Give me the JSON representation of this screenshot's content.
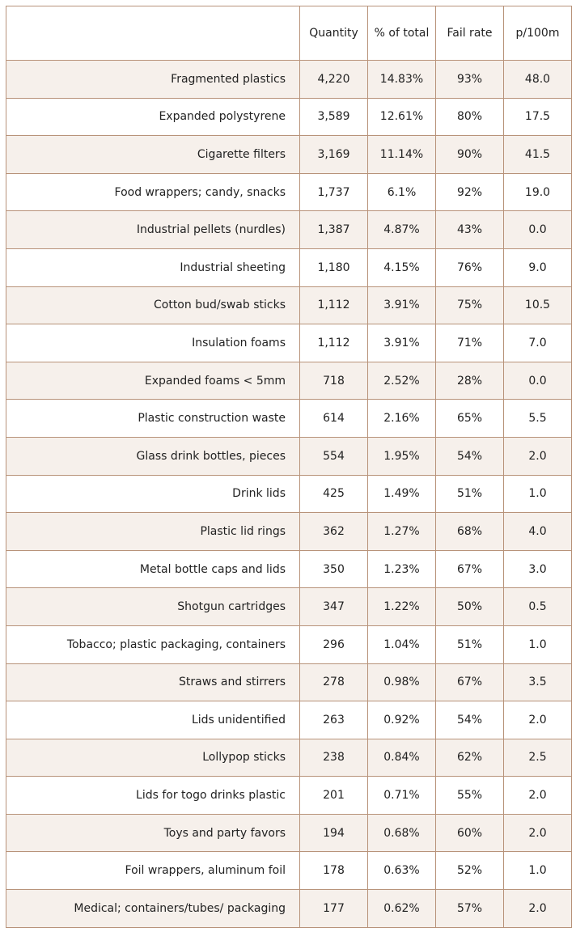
{
  "chart_data": {
    "type": "table",
    "columns": [
      "",
      "Quantity",
      "% of total",
      "Fail rate",
      "p/100m"
    ],
    "rows": [
      [
        "Fragmented plastics",
        "4,220",
        "14.83%",
        "93%",
        "48.0"
      ],
      [
        "Expanded polystyrene",
        "3,589",
        "12.61%",
        "80%",
        "17.5"
      ],
      [
        "Cigarette filters",
        "3,169",
        "11.14%",
        "90%",
        "41.5"
      ],
      [
        "Food wrappers; candy, snacks",
        "1,737",
        "6.1%",
        "92%",
        "19.0"
      ],
      [
        "Industrial pellets (nurdles)",
        "1,387",
        "4.87%",
        "43%",
        "0.0"
      ],
      [
        "Industrial sheeting",
        "1,180",
        "4.15%",
        "76%",
        "9.0"
      ],
      [
        "Cotton bud/swab sticks",
        "1,112",
        "3.91%",
        "75%",
        "10.5"
      ],
      [
        "Insulation foams",
        "1,112",
        "3.91%",
        "71%",
        "7.0"
      ],
      [
        "Expanded foams < 5mm",
        "718",
        "2.52%",
        "28%",
        "0.0"
      ],
      [
        "Plastic construction waste",
        "614",
        "2.16%",
        "65%",
        "5.5"
      ],
      [
        "Glass drink bottles, pieces",
        "554",
        "1.95%",
        "54%",
        "2.0"
      ],
      [
        "Drink lids",
        "425",
        "1.49%",
        "51%",
        "1.0"
      ],
      [
        "Plastic lid rings",
        "362",
        "1.27%",
        "68%",
        "4.0"
      ],
      [
        "Metal bottle caps and lids",
        "350",
        "1.23%",
        "67%",
        "3.0"
      ],
      [
        "Shotgun cartridges",
        "347",
        "1.22%",
        "50%",
        "0.5"
      ],
      [
        "Tobacco; plastic packaging, containers",
        "296",
        "1.04%",
        "51%",
        "1.0"
      ],
      [
        "Straws and stirrers",
        "278",
        "0.98%",
        "67%",
        "3.5"
      ],
      [
        "Lids unidentified",
        "263",
        "0.92%",
        "54%",
        "2.0"
      ],
      [
        "Lollypop sticks",
        "238",
        "0.84%",
        "62%",
        "2.5"
      ],
      [
        "Lids for togo drinks plastic",
        "201",
        "0.71%",
        "55%",
        "2.0"
      ],
      [
        "Toys and party favors",
        "194",
        "0.68%",
        "60%",
        "2.0"
      ],
      [
        "Foil wrappers, aluminum foil",
        "178",
        "0.63%",
        "52%",
        "1.0"
      ],
      [
        "Medical; containers/tubes/ packaging",
        "177",
        "0.62%",
        "57%",
        "2.0"
      ]
    ]
  },
  "colors": {
    "border": "#b8937a",
    "stripe": "#f6f0eb",
    "background": "#ffffff",
    "text": "#222222"
  }
}
